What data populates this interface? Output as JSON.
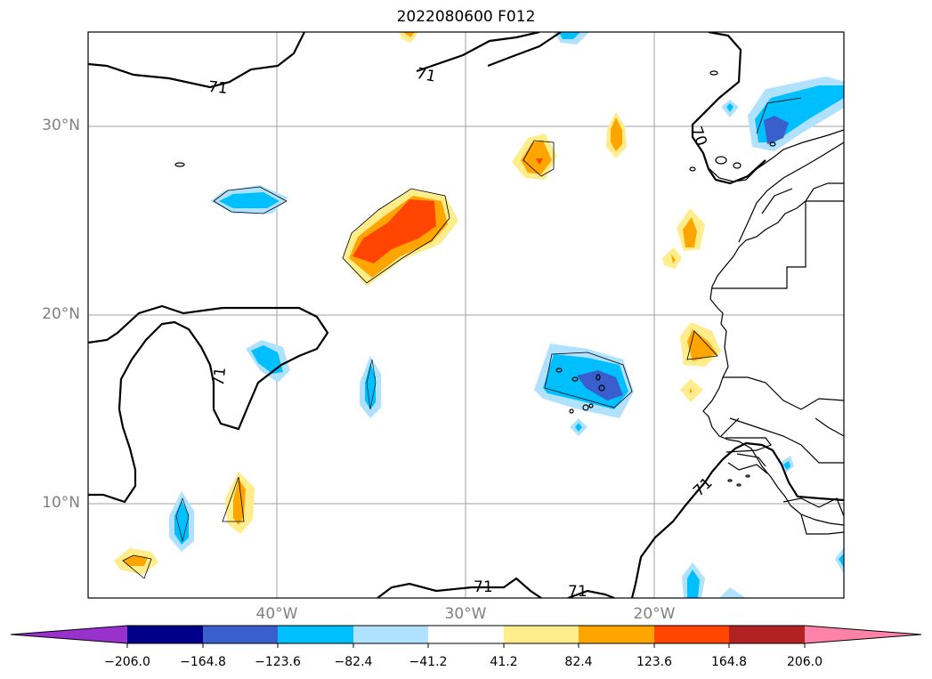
{
  "title": "2022080600 F012",
  "map": {
    "lat_labels": [
      "30°N",
      "20°N",
      "10°N"
    ],
    "lon_labels": [
      "40°W",
      "30°W",
      "20°W"
    ],
    "contour_labels": [
      "71",
      "71",
      "71",
      "70",
      "71",
      "71",
      "71"
    ]
  },
  "colorbar": {
    "colors": [
      "#9932cc",
      "#00008b",
      "#3a5fcd",
      "#00bfff",
      "#b0e2ff",
      "#ffffff",
      "#ffec8b",
      "#ffa500",
      "#ff4500",
      "#b22222",
      "#ff82ab"
    ],
    "tick_labels": [
      "−206.0",
      "−164.8",
      "−123.6",
      "−82.4",
      "−41.2",
      "41.2",
      "82.4",
      "123.6",
      "164.8",
      "206.0"
    ]
  }
}
